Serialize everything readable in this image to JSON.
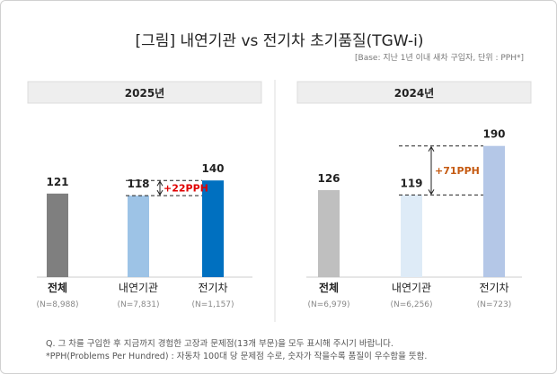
{
  "title": "[그림] 내연기관 vs 전기차 초기품질(TGW-i)",
  "base": "[Base: 지난 1년 이내 새차 구입자, 단위 : PPH*]",
  "notes": [
    "Q. 그 차를 구입한 후 지금까지 경험한 고장과 문제점(13개 부문)을 모두 표시해 주시기 바랍니다.",
    "*PPH(Problems Per Hundred) : 자동차 100대 당 문제점 수로, 숫자가 작을수록 품질이 우수함을 뜻함."
  ],
  "chart_data": [
    {
      "type": "bar",
      "title": "2025년",
      "categories": [
        "전체",
        "내연기관",
        "전기차"
      ],
      "n": [
        "(N=8,988)",
        "(N=7,831)",
        "(N=1,157)"
      ],
      "values": [
        121,
        118,
        140
      ],
      "colors": [
        "#7f7f7f",
        "#9dc3e6",
        "#0070c0"
      ],
      "annotation": "+22PPH",
      "annotation_color": "#e00000"
    },
    {
      "type": "bar",
      "title": "2024년",
      "categories": [
        "전체",
        "내연기관",
        "전기차"
      ],
      "n": [
        "(N=6,979)",
        "(N=6,256)",
        "(N=723)"
      ],
      "values": [
        126,
        119,
        190
      ],
      "colors": [
        "#bfbfbf",
        "#deebf7",
        "#b4c7e7"
      ],
      "annotation": "+71PPH",
      "annotation_color": "#c55a11"
    }
  ]
}
